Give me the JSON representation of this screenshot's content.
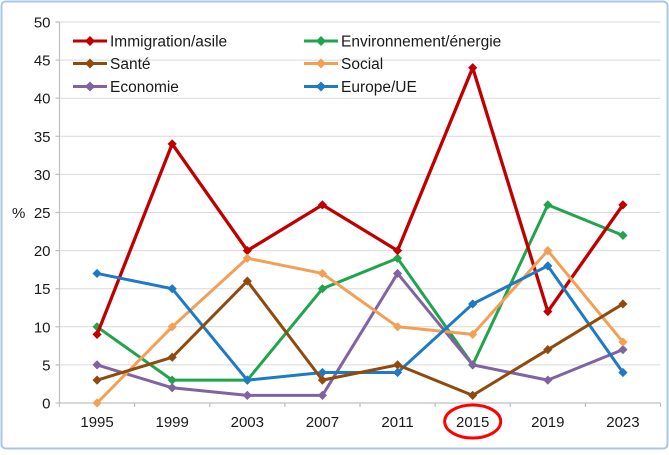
{
  "chart_data": {
    "type": "line",
    "title": "",
    "ylabel": "%",
    "xlabel": "",
    "categories": [
      "1995",
      "1999",
      "2003",
      "2007",
      "2011",
      "2015",
      "2019",
      "2023"
    ],
    "ylim": [
      0,
      50
    ],
    "yticks": [
      0,
      5,
      10,
      15,
      20,
      25,
      30,
      35,
      40,
      45,
      50
    ],
    "series": [
      {
        "name": "Immigration/asile",
        "color": "#C00000",
        "values": [
          9,
          34,
          20,
          26,
          20,
          44,
          12,
          26
        ]
      },
      {
        "name": "Environnement/énergie",
        "color": "#21A44D",
        "values": [
          10,
          3,
          3,
          15,
          19,
          5,
          26,
          22
        ]
      },
      {
        "name": "Santé",
        "color": "#8F4B0E",
        "values": [
          3,
          6,
          16,
          3,
          5,
          1,
          7,
          13
        ]
      },
      {
        "name": "Social",
        "color": "#F2A057",
        "values": [
          0,
          10,
          19,
          17,
          10,
          9,
          20,
          8
        ]
      },
      {
        "name": "Economie",
        "color": "#8064A2",
        "values": [
          5,
          2,
          1,
          1,
          17,
          5,
          3,
          7
        ]
      },
      {
        "name": "Europe/UE",
        "color": "#1F7AC5",
        "values": [
          17,
          15,
          3,
          4,
          4,
          13,
          18,
          4
        ]
      }
    ],
    "annotation": {
      "shape": "ellipse",
      "around_x_label": "2015",
      "color": "#FF0000"
    },
    "layout": {
      "grid": "horizontal",
      "legend_position": "inside-top-left-two-columns",
      "marker": "diamond",
      "draw_order": [
        "Environnement/énergie",
        "Economie",
        "Immigration/asile",
        "Social",
        "Europe/UE",
        "Santé"
      ]
    }
  },
  "colors": {
    "outer_border": "#A9C6E6",
    "gridline": "#D9D9D9",
    "axis": "#BFBFBF",
    "tick_text": "#1a1a1a",
    "background": "#FFFFFF"
  }
}
